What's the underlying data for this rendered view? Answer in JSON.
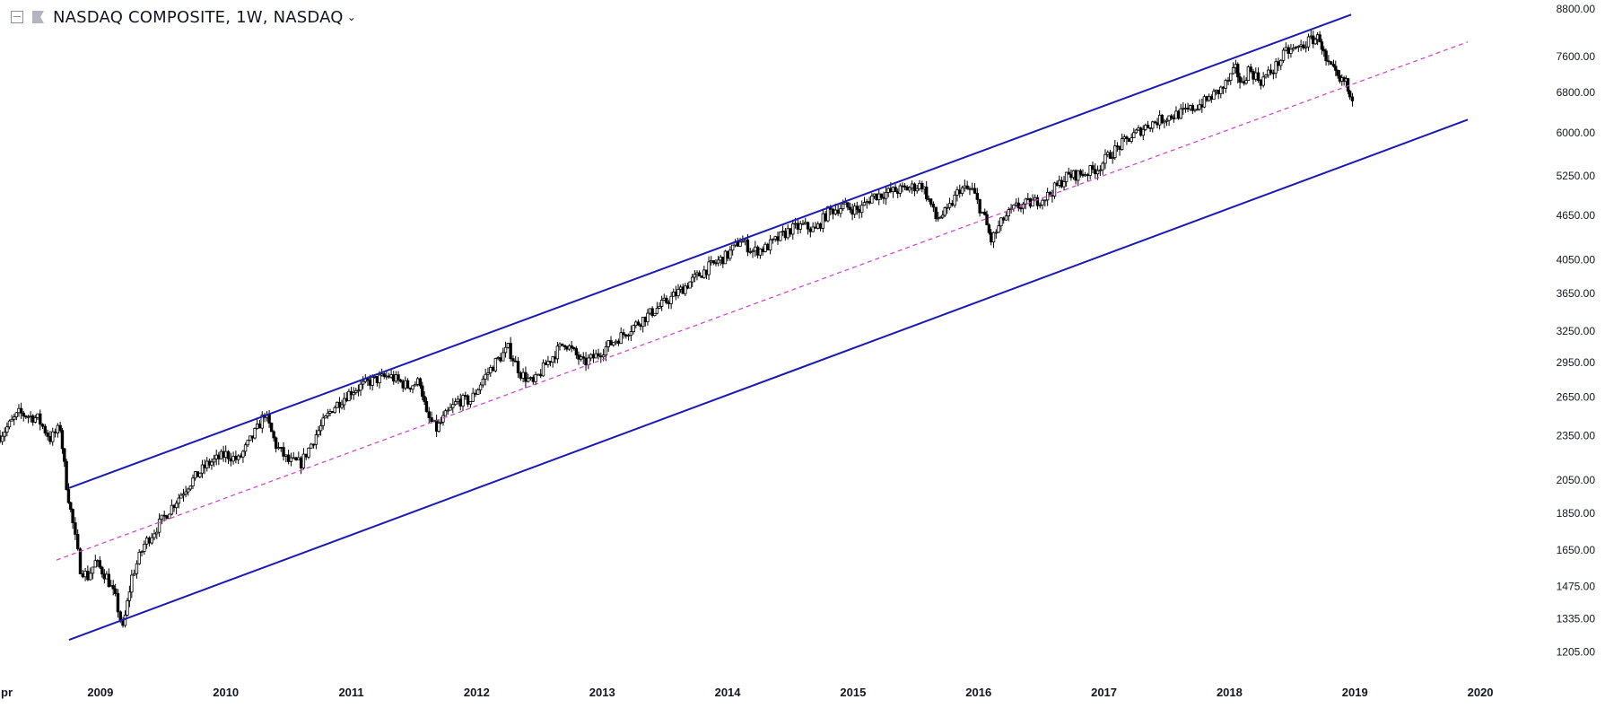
{
  "header": {
    "title": "NASDAQ COMPOSITE, 1W, NASDAQ",
    "chevron": "⌄"
  },
  "colors": {
    "background": "#ffffff",
    "candles": "#000000",
    "channel_lines": "#1a1ab4",
    "midline": "#d23cd2",
    "axis_text": "#131722"
  },
  "icons": [
    "collapse-icon",
    "flag-icon",
    "chevron-down-icon"
  ],
  "chart_data": {
    "type": "candlestick",
    "title": "NASDAQ COMPOSITE, 1W, NASDAQ",
    "xlabel": "",
    "ylabel": "",
    "y_scale": "log",
    "grid": false,
    "x_ticks": [
      "Apr",
      "2009",
      "2010",
      "2011",
      "2012",
      "2013",
      "2014",
      "2015",
      "2016",
      "2017",
      "2018",
      "2019",
      "2020"
    ],
    "y_ticks": [
      8800,
      7600,
      6800,
      6000,
      5250,
      4650,
      4050,
      3650,
      3250,
      2950,
      2650,
      2350,
      2050,
      1850,
      1650,
      1475,
      1335,
      1205
    ],
    "xlim": [
      2008.2,
      2020.5
    ],
    "ylim": [
      1160,
      8900
    ],
    "series": [
      {
        "values": [
          [
            2008.2,
            2350
          ],
          [
            2008.35,
            2520
          ],
          [
            2008.5,
            2480
          ],
          [
            2008.6,
            2330
          ],
          [
            2008.68,
            2410
          ],
          [
            2008.73,
            2020
          ],
          [
            2008.78,
            1790
          ],
          [
            2008.84,
            1560
          ],
          [
            2008.9,
            1520
          ],
          [
            2008.96,
            1590
          ],
          [
            2009.05,
            1520
          ],
          [
            2009.12,
            1420
          ],
          [
            2009.18,
            1290
          ],
          [
            2009.25,
            1520
          ],
          [
            2009.35,
            1680
          ],
          [
            2009.45,
            1770
          ],
          [
            2009.55,
            1870
          ],
          [
            2009.7,
            2020
          ],
          [
            2009.85,
            2150
          ],
          [
            2010.0,
            2220
          ],
          [
            2010.1,
            2180
          ],
          [
            2010.25,
            2400
          ],
          [
            2010.31,
            2520
          ],
          [
            2010.4,
            2280
          ],
          [
            2010.5,
            2170
          ],
          [
            2010.6,
            2160
          ],
          [
            2010.72,
            2360
          ],
          [
            2010.85,
            2560
          ],
          [
            2011.0,
            2700
          ],
          [
            2011.15,
            2780
          ],
          [
            2011.3,
            2830
          ],
          [
            2011.45,
            2740
          ],
          [
            2011.55,
            2780
          ],
          [
            2011.6,
            2500
          ],
          [
            2011.68,
            2400
          ],
          [
            2011.75,
            2500
          ],
          [
            2011.85,
            2620
          ],
          [
            2011.95,
            2620
          ],
          [
            2012.05,
            2800
          ],
          [
            2012.15,
            2950
          ],
          [
            2012.25,
            3080
          ],
          [
            2012.35,
            2850
          ],
          [
            2012.45,
            2760
          ],
          [
            2012.55,
            2930
          ],
          [
            2012.7,
            3140
          ],
          [
            2012.85,
            2940
          ],
          [
            2012.95,
            3010
          ],
          [
            2013.05,
            3110
          ],
          [
            2013.15,
            3200
          ],
          [
            2013.25,
            3300
          ],
          [
            2013.4,
            3450
          ],
          [
            2013.55,
            3600
          ],
          [
            2013.7,
            3780
          ],
          [
            2013.85,
            3960
          ],
          [
            2014.0,
            4110
          ],
          [
            2014.1,
            4310
          ],
          [
            2014.2,
            4160
          ],
          [
            2014.3,
            4200
          ],
          [
            2014.4,
            4320
          ],
          [
            2014.5,
            4450
          ],
          [
            2014.6,
            4500
          ],
          [
            2014.7,
            4440
          ],
          [
            2014.8,
            4700
          ],
          [
            2014.92,
            4780
          ],
          [
            2015.05,
            4720
          ],
          [
            2015.15,
            4930
          ],
          [
            2015.3,
            5000
          ],
          [
            2015.45,
            5060
          ],
          [
            2015.55,
            5110
          ],
          [
            2015.62,
            4800
          ],
          [
            2015.66,
            4600
          ],
          [
            2015.75,
            4700
          ],
          [
            2015.85,
            5050
          ],
          [
            2015.95,
            5020
          ],
          [
            2016.05,
            4600
          ],
          [
            2016.1,
            4300
          ],
          [
            2016.2,
            4600
          ],
          [
            2016.3,
            4770
          ],
          [
            2016.45,
            4850
          ],
          [
            2016.55,
            4940
          ],
          [
            2016.7,
            5240
          ],
          [
            2016.85,
            5300
          ],
          [
            2016.95,
            5380
          ],
          [
            2017.05,
            5620
          ],
          [
            2017.2,
            5900
          ],
          [
            2017.35,
            6150
          ],
          [
            2017.5,
            6300
          ],
          [
            2017.65,
            6400
          ],
          [
            2017.8,
            6600
          ],
          [
            2017.95,
            6900
          ],
          [
            2018.05,
            7300
          ],
          [
            2018.1,
            6950
          ],
          [
            2018.15,
            7300
          ],
          [
            2018.25,
            7050
          ],
          [
            2018.35,
            7300
          ],
          [
            2018.45,
            7700
          ],
          [
            2018.55,
            7800
          ],
          [
            2018.65,
            8000
          ],
          [
            2018.72,
            8050
          ],
          [
            2018.77,
            7450
          ],
          [
            2018.83,
            7250
          ],
          [
            2018.88,
            7000
          ],
          [
            2018.93,
            7050
          ],
          [
            2018.96,
            6600
          ],
          [
            2019.0,
            6850
          ]
        ]
      }
    ],
    "channel": {
      "upper": [
        [
          2008.75,
          2000
        ],
        [
          2018.97,
          8650
        ]
      ],
      "lower": [
        [
          2008.75,
          1250
        ],
        [
          2019.9,
          6250
        ]
      ],
      "mid": [
        [
          2008.65,
          1600
        ],
        [
          2019.9,
          7950
        ]
      ]
    }
  }
}
